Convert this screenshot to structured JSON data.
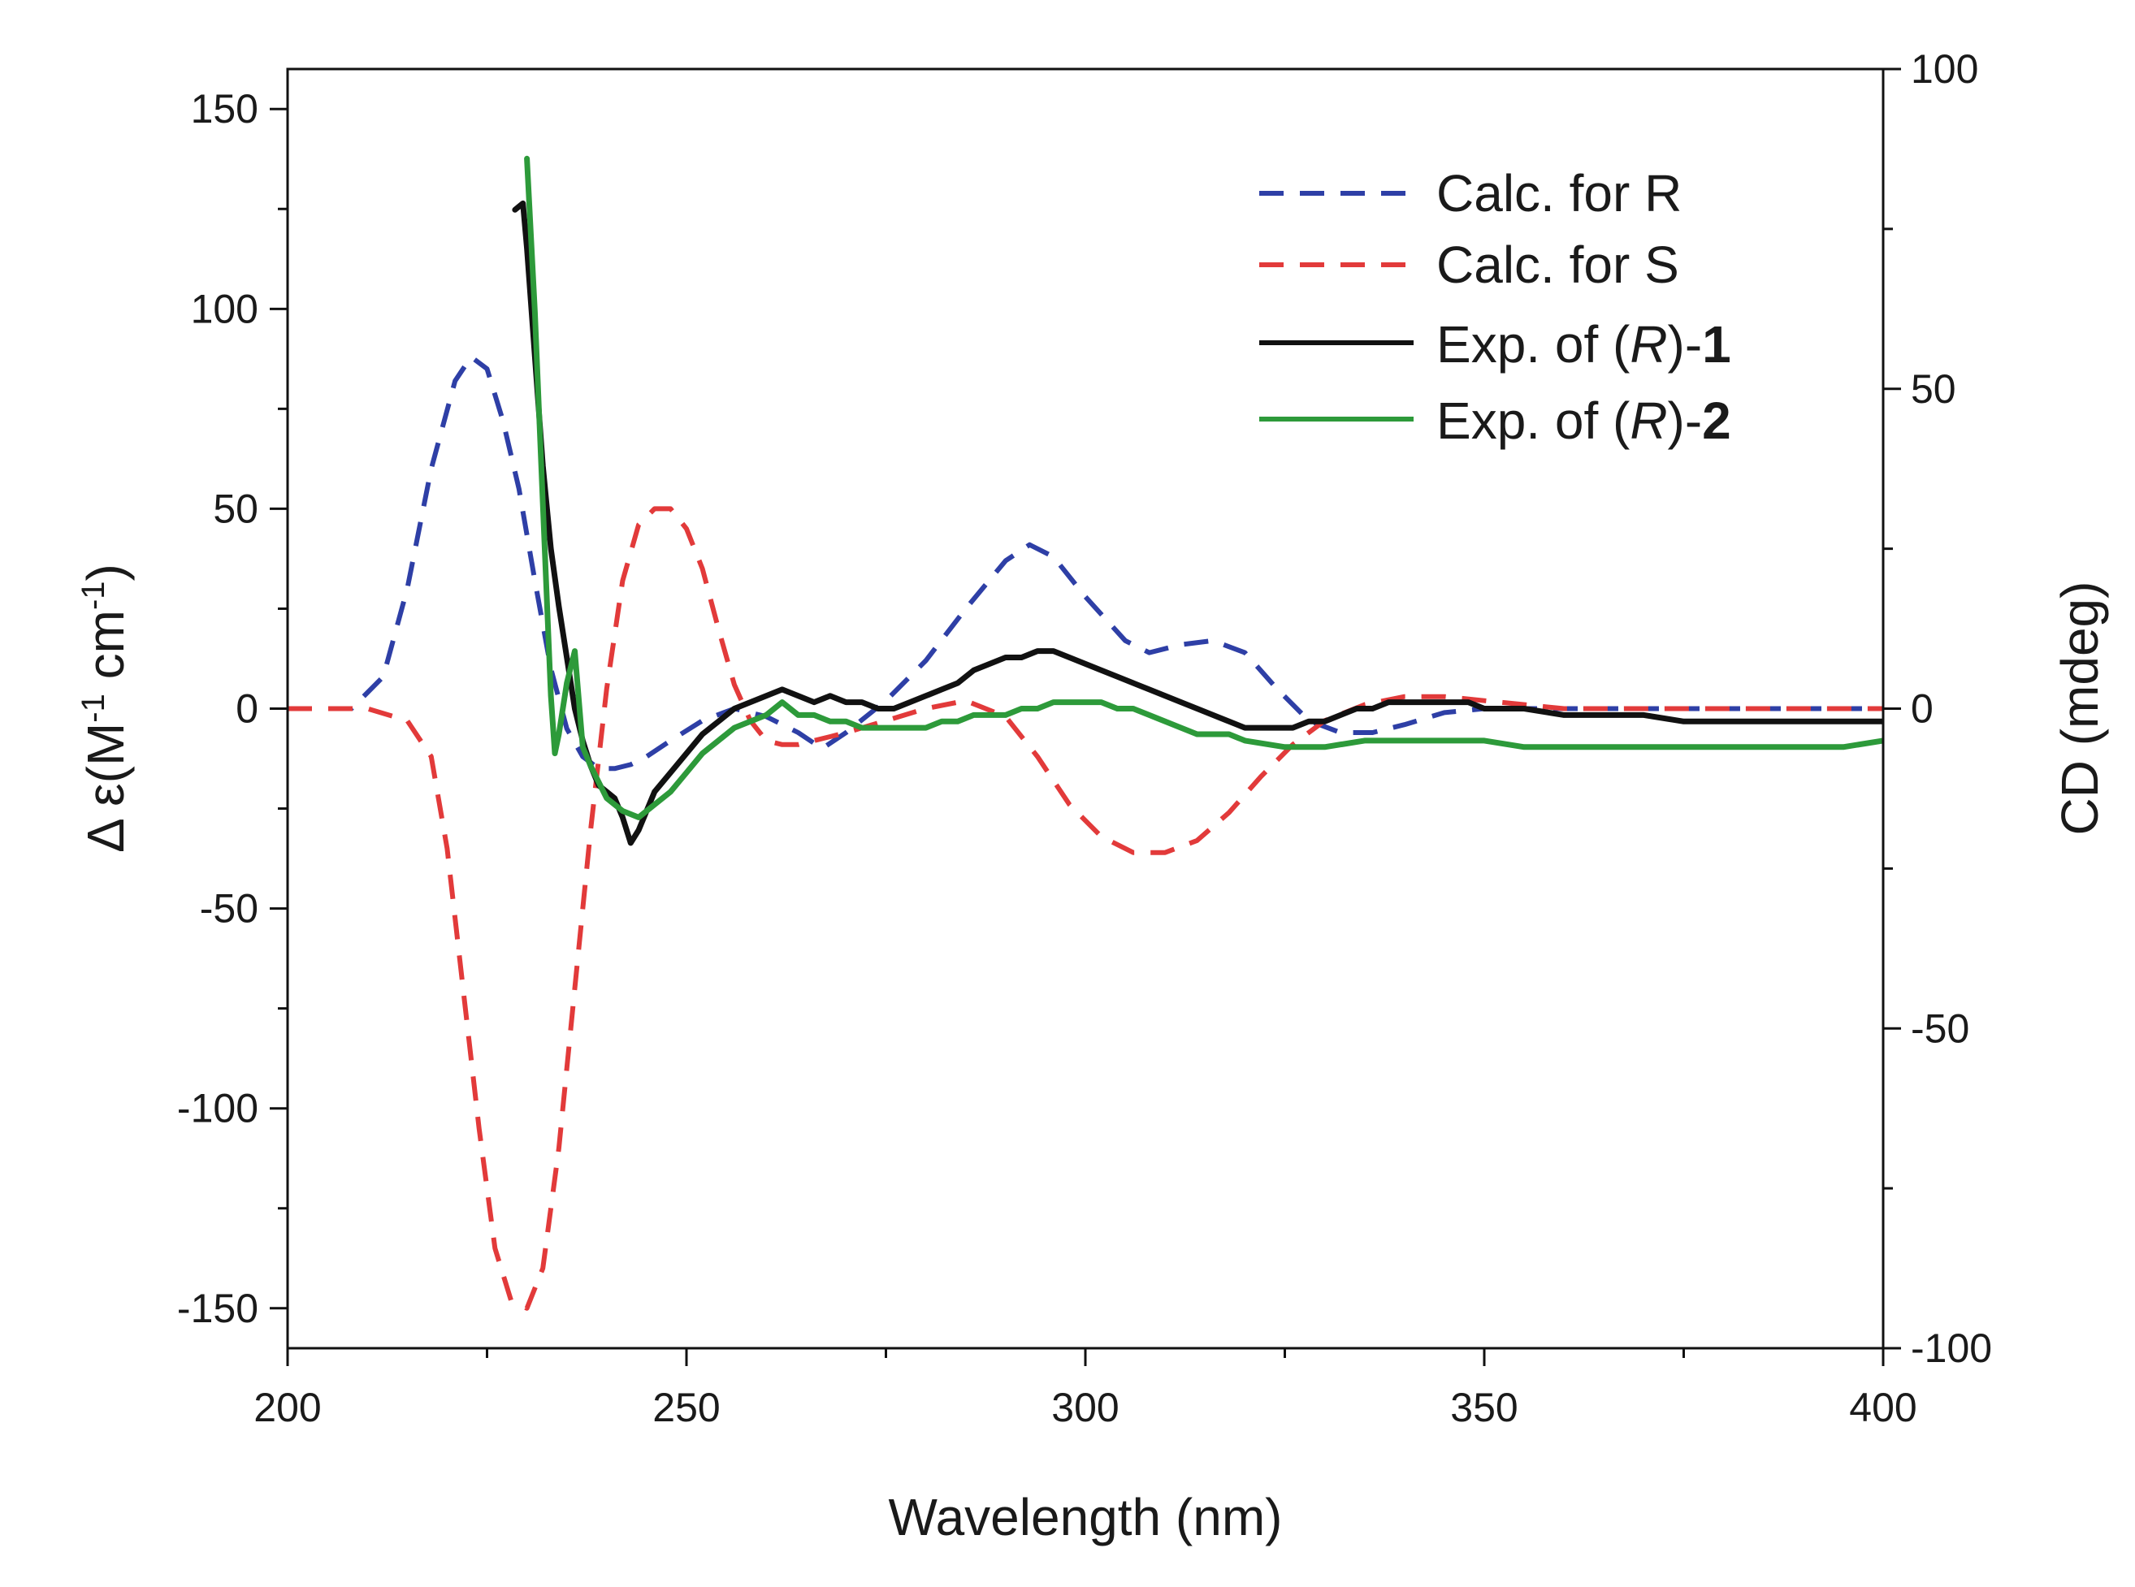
{
  "chart_data": {
    "type": "line",
    "xlabel": "Wavelength (nm)",
    "ylabel_left": {
      "prefix": "Δ ε(M",
      "sup1": "-1",
      "mid": " cm",
      "sup2": "-1",
      "suffix": ")"
    },
    "ylabel_right": "CD (mdeg)",
    "xlim": [
      200,
      400
    ],
    "ylim_left": [
      -160,
      160
    ],
    "ylim_right": [
      -100,
      100
    ],
    "x_ticks": [
      200,
      250,
      300,
      350,
      400
    ],
    "y_left_ticks": [
      -150,
      -100,
      -50,
      0,
      50,
      100,
      150
    ],
    "y_right_ticks": [
      -100,
      -50,
      0,
      50,
      100
    ],
    "x_tick_labels": [
      "200",
      "250",
      "300",
      "350",
      "400"
    ],
    "y_left_tick_labels": [
      "-150",
      "-100",
      "-50",
      "0",
      "50",
      "100",
      "150"
    ],
    "y_right_tick_labels": [
      "-100",
      "-50",
      "0",
      "50",
      "100"
    ],
    "legend_position": "top-right",
    "series": [
      {
        "name": "Calc. for R",
        "axis": "left",
        "color": "#2e3fa6",
        "style": "dashed",
        "x": [
          200,
          205,
          208,
          212,
          215,
          218,
          221,
          223,
          225,
          227,
          229,
          231,
          233,
          235,
          237,
          239,
          241,
          243,
          245,
          248,
          252,
          256,
          260,
          264,
          267,
          270,
          275,
          280,
          285,
          290,
          293,
          296,
          300,
          305,
          308,
          312,
          316,
          320,
          324,
          328,
          332,
          336,
          340,
          345,
          350,
          355,
          360,
          370,
          380,
          390,
          400
        ],
        "y": [
          0,
          0,
          0,
          8,
          30,
          60,
          82,
          88,
          85,
          72,
          55,
          32,
          10,
          -5,
          -12,
          -15,
          -15,
          -14,
          -12,
          -8,
          -3,
          0,
          -2,
          -6,
          -10,
          -6,
          2,
          12,
          25,
          37,
          41,
          38,
          28,
          17,
          14,
          16,
          17,
          14,
          5,
          -3,
          -6,
          -6,
          -4,
          -1,
          0,
          0,
          0,
          0,
          0,
          0,
          0
        ]
      },
      {
        "name": "Calc. for S",
        "axis": "left",
        "color": "#e23a3a",
        "style": "dashed",
        "x": [
          200,
          205,
          210,
          215,
          218,
          220,
          222,
          224,
          226,
          228,
          230,
          232,
          234,
          236,
          238,
          240,
          242,
          244,
          246,
          248,
          250,
          252,
          254,
          256,
          258,
          260,
          262,
          264,
          266,
          268,
          270,
          275,
          280,
          285,
          290,
          294,
          298,
          302,
          306,
          310,
          314,
          318,
          322,
          326,
          330,
          335,
          340,
          345,
          350,
          360,
          370,
          380,
          390,
          400
        ],
        "y": [
          0,
          0,
          0,
          -3,
          -12,
          -35,
          -70,
          -105,
          -135,
          -148,
          -150,
          -140,
          -110,
          -70,
          -30,
          5,
          32,
          46,
          50,
          50,
          45,
          35,
          20,
          6,
          -3,
          -8,
          -9,
          -9,
          -8,
          -7,
          -6,
          -3,
          0,
          2,
          -2,
          -12,
          -24,
          -32,
          -36,
          -36,
          -33,
          -26,
          -17,
          -9,
          -3,
          1,
          3,
          3,
          2,
          0,
          0,
          0,
          0,
          0
        ]
      },
      {
        "name": "Exp. of (R)-1",
        "axis": "right",
        "color": "#111111",
        "style": "solid",
        "x": [
          228.5,
          229.5,
          230,
          231,
          232,
          233,
          234,
          235,
          236,
          237,
          238,
          239,
          240,
          241,
          242,
          243,
          244,
          245,
          246,
          248,
          250,
          252,
          254,
          256,
          258,
          260,
          262,
          264,
          266,
          268,
          270,
          272,
          274,
          276,
          278,
          280,
          282,
          284,
          286,
          288,
          290,
          292,
          294,
          296,
          298,
          300,
          302,
          304,
          306,
          308,
          310,
          312,
          314,
          316,
          318,
          320,
          322,
          324,
          326,
          328,
          330,
          332,
          334,
          336,
          338,
          340,
          342,
          344,
          346,
          348,
          350,
          355,
          360,
          365,
          370,
          375,
          380,
          385,
          390,
          395,
          400
        ],
        "y": [
          78,
          79,
          72,
          55,
          38,
          25,
          16,
          8,
          0,
          -5,
          -9,
          -12,
          -13,
          -14,
          -17,
          -21,
          -19,
          -16,
          -13,
          -10,
          -7,
          -4,
          -2,
          0,
          1,
          2,
          3,
          2,
          1,
          2,
          1,
          1,
          0,
          0,
          1,
          2,
          3,
          4,
          6,
          7,
          8,
          8,
          9,
          9,
          8,
          7,
          6,
          5,
          4,
          3,
          2,
          1,
          0,
          -1,
          -2,
          -3,
          -3,
          -3,
          -3,
          -2,
          -2,
          -1,
          0,
          0,
          1,
          1,
          1,
          1,
          1,
          1,
          0,
          0,
          -1,
          -1,
          -1,
          -2,
          -2,
          -2,
          -2,
          -2,
          -2
        ]
      },
      {
        "name": "Exp. of (R)-2",
        "axis": "right",
        "color": "#2d9a3a",
        "style": "solid",
        "x": [
          230,
          231,
          232,
          233,
          233.5,
          234,
          235,
          236,
          237,
          238,
          240,
          242,
          244,
          246,
          248,
          250,
          252,
          254,
          256,
          258,
          260,
          262,
          264,
          266,
          268,
          270,
          272,
          274,
          276,
          278,
          280,
          282,
          284,
          286,
          288,
          290,
          292,
          294,
          296,
          298,
          300,
          302,
          304,
          306,
          308,
          310,
          312,
          314,
          316,
          318,
          320,
          325,
          330,
          335,
          340,
          345,
          350,
          355,
          360,
          365,
          370,
          375,
          380,
          385,
          390,
          395,
          400
        ],
        "y": [
          86,
          62,
          32,
          2,
          -7,
          -4,
          4,
          9,
          -6,
          -9,
          -14,
          -16,
          -17,
          -15,
          -13,
          -10,
          -7,
          -5,
          -3,
          -2,
          -1,
          1,
          -1,
          -1,
          -2,
          -2,
          -3,
          -3,
          -3,
          -3,
          -3,
          -2,
          -2,
          -1,
          -1,
          -1,
          0,
          0,
          1,
          1,
          1,
          1,
          0,
          0,
          -1,
          -2,
          -3,
          -4,
          -4,
          -4,
          -5,
          -6,
          -6,
          -5,
          -5,
          -5,
          -5,
          -6,
          -6,
          -6,
          -6,
          -6,
          -6,
          -6,
          -6,
          -6,
          -5
        ]
      }
    ]
  }
}
